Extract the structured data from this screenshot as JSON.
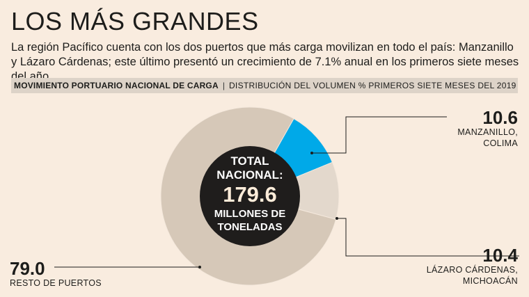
{
  "header": {
    "title": "LOS MÁS GRANDES",
    "subtitle": "La región Pacífico cuenta con los dos puertos que más carga movilizan en todo el país: Manzanillo y Lázaro Cárdenas; este último presentó un crecimiento de 7.1% anual en los primeros siete meses del año."
  },
  "bar": {
    "lead": "MOVIMIENTO PORTUARIO NACIONAL DE CARGA",
    "separator": "|",
    "rest": "DISTRIBUCIÓN DEL VOLUMEN % PRIMEROS SIETE MESES DEL 2019"
  },
  "center": {
    "line1": "TOTAL",
    "line2": "NACIONAL:",
    "number": "179.6",
    "line3": "MILLONES DE",
    "line4": "TONELADAS"
  },
  "colors": {
    "background": "#f9ecdf",
    "rest": "#d6c8b8",
    "manzanillo": "#00a9e8",
    "lazaro": "#e3d8cc",
    "center": "#1f1d1c"
  },
  "chart_data": {
    "type": "pie",
    "title": "LOS MÁS GRANDES",
    "slices": [
      {
        "label": "MANZANILLO, COLIMA",
        "label_lines": [
          "MANZANILLO,",
          "COLIMA"
        ],
        "value": 10.6,
        "value_text": "10.6",
        "color": "#00a9e8"
      },
      {
        "label": "LÁZARO CÁRDENAS, MICHOACÁN",
        "label_lines": [
          "LÁZARO CÁRDENAS,",
          "MICHOACÁN"
        ],
        "value": 10.4,
        "value_text": "10.4",
        "color": "#e3d8cc"
      },
      {
        "label": "RESTO DE PUERTOS",
        "label_lines": [
          "RESTO DE PUERTOS"
        ],
        "value": 79.0,
        "value_text": "79.0",
        "color": "#d6c8b8"
      }
    ],
    "total": "179.6",
    "unit": "%"
  }
}
